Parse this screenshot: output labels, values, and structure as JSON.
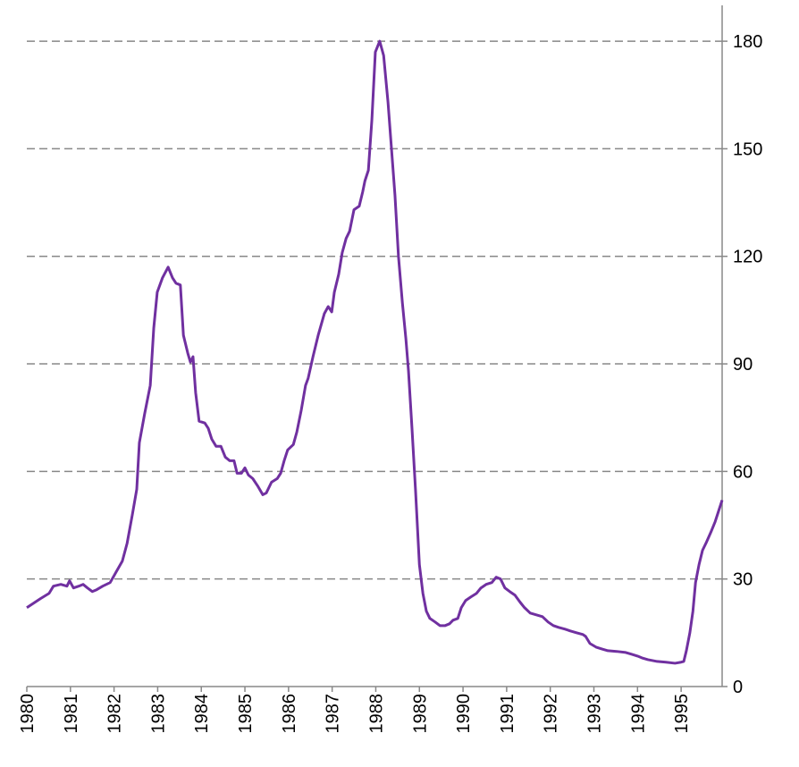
{
  "chart_data": {
    "type": "line",
    "x": [
      1980.0,
      1980.31,
      1980.51,
      1980.61,
      1980.78,
      1980.92,
      1980.98,
      1981.07,
      1981.19,
      1981.29,
      1981.39,
      1981.5,
      1981.6,
      1981.74,
      1981.91,
      1982.05,
      1982.19,
      1982.3,
      1982.42,
      1982.52,
      1982.58,
      1982.7,
      1982.83,
      1982.91,
      1982.99,
      1983.11,
      1983.24,
      1983.34,
      1983.42,
      1983.52,
      1983.59,
      1983.69,
      1983.75,
      1983.81,
      1983.87,
      1983.95,
      1984.08,
      1984.16,
      1984.24,
      1984.34,
      1984.45,
      1984.55,
      1984.65,
      1984.75,
      1984.82,
      1984.92,
      1985.0,
      1985.08,
      1985.18,
      1985.29,
      1985.41,
      1985.49,
      1985.61,
      1985.74,
      1985.82,
      1985.9,
      1985.98,
      1986.11,
      1986.19,
      1986.29,
      1986.39,
      1986.45,
      1986.56,
      1986.68,
      1986.82,
      1986.91,
      1986.99,
      1987.05,
      1987.15,
      1987.23,
      1987.32,
      1987.4,
      1987.5,
      1987.62,
      1987.7,
      1987.75,
      1987.83,
      1987.91,
      1987.99,
      1988.09,
      1988.18,
      1988.28,
      1988.36,
      1988.44,
      1988.52,
      1988.61,
      1988.69,
      1988.75,
      1988.83,
      1988.91,
      1989.0,
      1989.08,
      1989.16,
      1989.24,
      1989.36,
      1989.47,
      1989.59,
      1989.69,
      1989.77,
      1989.88,
      1989.96,
      1990.06,
      1990.18,
      1990.31,
      1990.41,
      1990.53,
      1990.66,
      1990.76,
      1990.86,
      1990.96,
      1991.07,
      1991.19,
      1991.31,
      1991.41,
      1991.54,
      1991.68,
      1991.82,
      1991.95,
      1992.07,
      1992.19,
      1992.34,
      1992.46,
      1992.6,
      1992.75,
      1992.81,
      1992.91,
      1993.05,
      1993.18,
      1993.32,
      1993.52,
      1993.73,
      1993.87,
      1994.0,
      1994.1,
      1994.24,
      1994.45,
      1994.65,
      1994.86,
      1995.0,
      1995.06,
      1995.12,
      1995.2,
      1995.27,
      1995.33,
      1995.41,
      1995.49,
      1995.57,
      1995.68,
      1995.78,
      1995.86,
      1995.94
    ],
    "series": [
      {
        "name": "series",
        "color": "#7030a0",
        "values": [
          22,
          24.5,
          26,
          28,
          28.5,
          28,
          29.5,
          27.5,
          28,
          28.5,
          27.5,
          26.5,
          27,
          28,
          29,
          32,
          35,
          40,
          48,
          55,
          68,
          76,
          84,
          100,
          110,
          114,
          117,
          114,
          112.5,
          112,
          98,
          93,
          90.5,
          92,
          82,
          74,
          73.5,
          72,
          69,
          67,
          67,
          64,
          63,
          63,
          59.5,
          59.5,
          61,
          59,
          58,
          56,
          53.5,
          54,
          57,
          58,
          59.5,
          63,
          66,
          67.5,
          71,
          77,
          84,
          86,
          92,
          98,
          104,
          106,
          104.5,
          110,
          115,
          121,
          125,
          127,
          133,
          134,
          138,
          141,
          144,
          158,
          177,
          180,
          176,
          163,
          150,
          137,
          120,
          107,
          97,
          88,
          72,
          55,
          34,
          26,
          21,
          19,
          18,
          17,
          17,
          17.5,
          18.5,
          19,
          22,
          24,
          25,
          26,
          27.5,
          28.5,
          29,
          30.5,
          30,
          27.5,
          26.5,
          25.5,
          23.5,
          22,
          20.5,
          20,
          19.5,
          18,
          17,
          16.5,
          16,
          15.5,
          15,
          14.5,
          14,
          12,
          11,
          10.5,
          10,
          9.8,
          9.5,
          9,
          8.5,
          8,
          7.5,
          7,
          6.8,
          6.5,
          6.8,
          7,
          10,
          15,
          21,
          29,
          34,
          38,
          40,
          43,
          46,
          49,
          52
        ]
      }
    ],
    "xlim": [
      1980,
      1995.94
    ],
    "xticks": [
      1980,
      1981,
      1982,
      1983,
      1984,
      1985,
      1986,
      1987,
      1988,
      1989,
      1990,
      1991,
      1992,
      1993,
      1994,
      1995
    ],
    "ylim": [
      0,
      190
    ],
    "yticks": [
      0,
      30,
      60,
      90,
      120,
      150,
      180
    ],
    "grid": true
  }
}
